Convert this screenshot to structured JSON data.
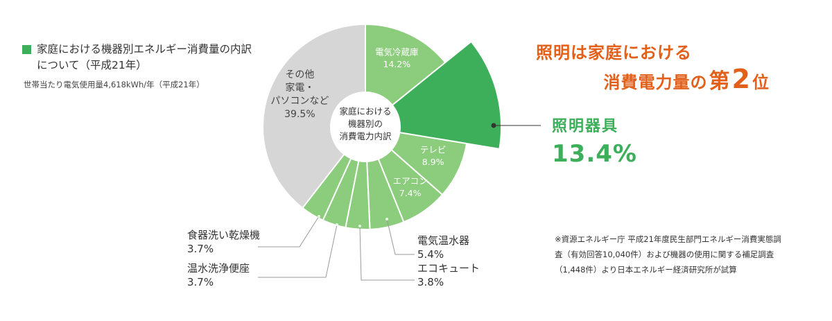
{
  "legend": {
    "title": "家庭における機器別エネルギー消費量の内訳について（平成21年）",
    "note": "世帯当たり電気使用量4,618kWh/年（平成21年）"
  },
  "headline": {
    "line1": "照明は家庭における",
    "line2_prefix": "消費電力量の",
    "line2_big": "第",
    "line2_num": "2",
    "line2_suffix": "位"
  },
  "highlight": {
    "label": "照明器具",
    "value": "13.4%"
  },
  "source": "※資源エネルギー庁 平成21年度民生部門エネルギー消費実態調査（有効回答10,040件）および機器の使用に関する補足調査（1,448件）より日本エネルギー経済研究所が試算",
  "colors": {
    "light_green": "#8ccd7d",
    "highlight_green": "#3dae5a",
    "gray": "#d6d6d6",
    "orange": "#e2601a"
  },
  "chart_data": {
    "type": "pie",
    "donut": true,
    "center_label": "家庭における\n機器別の\n消費電力内訳",
    "slices": [
      {
        "label": "電気冷蔵庫",
        "value": 14.2,
        "value_label": "14.2%",
        "color": "#8ccd7d"
      },
      {
        "label": "照明器具",
        "value": 13.4,
        "value_label": "13.4%",
        "color": "#3dae5a",
        "exploded": true
      },
      {
        "label": "テレビ",
        "value": 8.9,
        "value_label": "8.9%",
        "color": "#8ccd7d"
      },
      {
        "label": "エアコン",
        "value": 7.4,
        "value_label": "7.4%",
        "color": "#8ccd7d"
      },
      {
        "label": "電気温水器",
        "value": 5.4,
        "value_label": "5.4%",
        "color": "#8ccd7d"
      },
      {
        "label": "エコキュート",
        "value": 3.8,
        "value_label": "3.8%",
        "color": "#8ccd7d"
      },
      {
        "label": "温水洗浄便座",
        "value": 3.7,
        "value_label": "3.7%",
        "color": "#8ccd7d"
      },
      {
        "label": "食器洗い乾燥機",
        "value": 3.7,
        "value_label": "3.7%",
        "color": "#8ccd7d"
      },
      {
        "label": "その他\n家電・\nパソコンなど",
        "value": 39.5,
        "value_label": "39.5%",
        "color": "#d6d6d6"
      }
    ]
  }
}
